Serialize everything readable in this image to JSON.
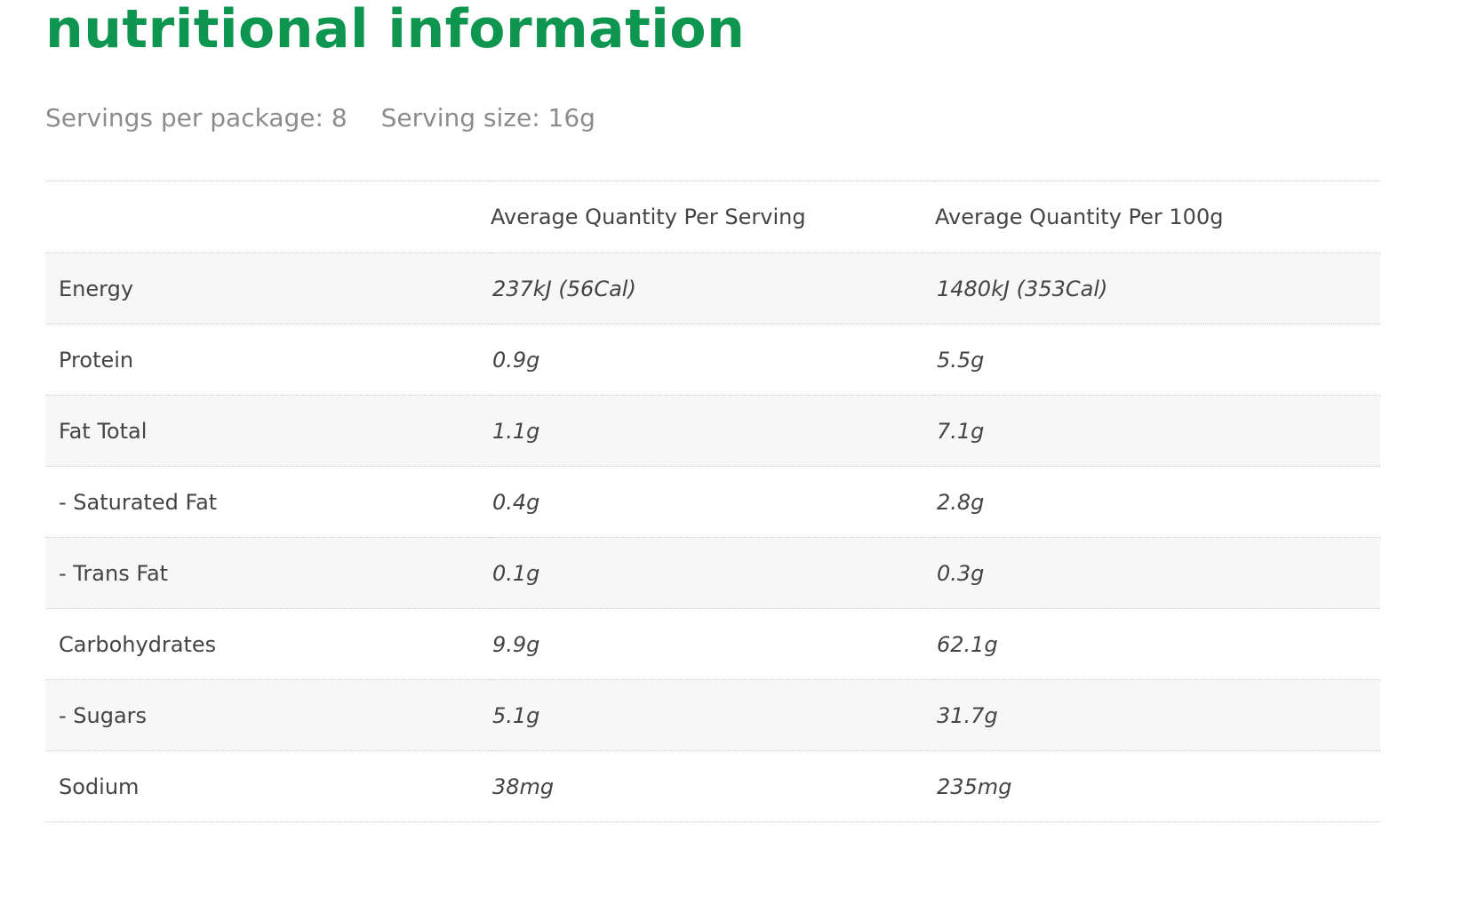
{
  "colors": {
    "title": "#0e9550",
    "subtitle": "#8c8c8c",
    "text": "#444444",
    "row_alt_bg": "#f7f7f7",
    "divider": "#c9c9c9"
  },
  "title": "nutritional information",
  "servings_per_package": "Servings per package: 8",
  "serving_size": "Serving size: 16g",
  "table": {
    "headers": [
      "",
      "Average Quantity Per Serving",
      "Average Quantity Per 100g"
    ],
    "rows": [
      {
        "name": "Energy",
        "per_serving": "237kJ (56Cal)",
        "per_100g": "1480kJ (353Cal)"
      },
      {
        "name": "Protein",
        "per_serving": "0.9g",
        "per_100g": "5.5g"
      },
      {
        "name": "Fat Total",
        "per_serving": "1.1g",
        "per_100g": "7.1g"
      },
      {
        "name": "- Saturated Fat",
        "per_serving": "0.4g",
        "per_100g": "2.8g"
      },
      {
        "name": "- Trans Fat",
        "per_serving": "0.1g",
        "per_100g": "0.3g"
      },
      {
        "name": "Carbohydrates",
        "per_serving": "9.9g",
        "per_100g": "62.1g"
      },
      {
        "name": "- Sugars",
        "per_serving": "5.1g",
        "per_100g": "31.7g"
      },
      {
        "name": "Sodium",
        "per_serving": "38mg",
        "per_100g": "235mg"
      }
    ]
  }
}
